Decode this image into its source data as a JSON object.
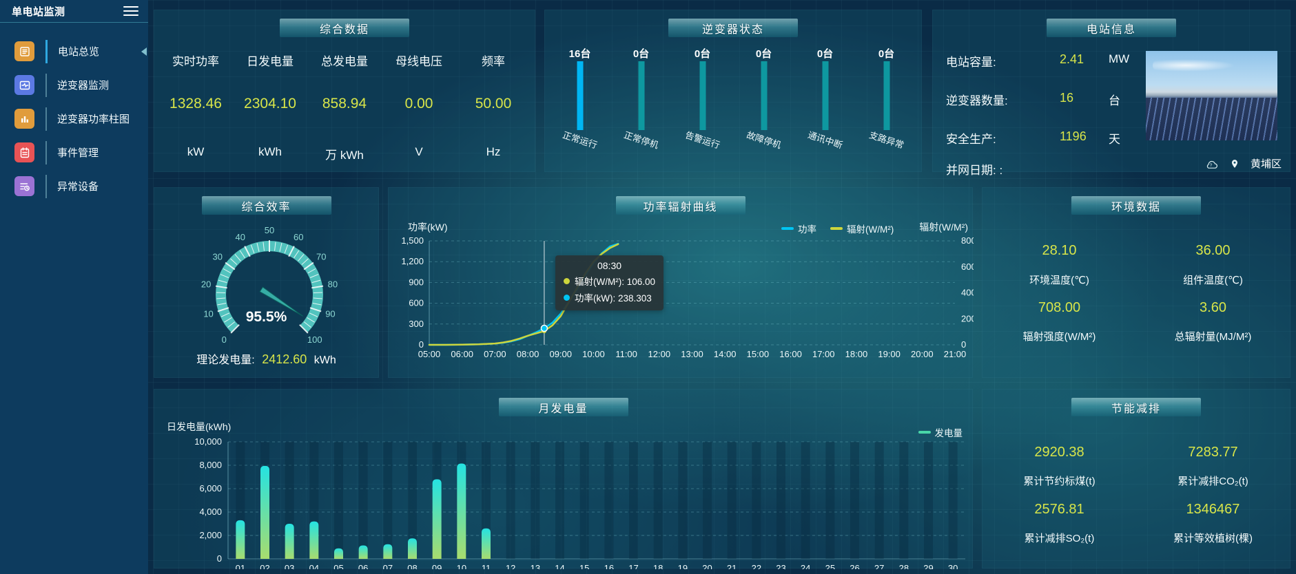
{
  "app": {
    "title": "单电站监测"
  },
  "sidebar": {
    "items": [
      {
        "label": "电站总览",
        "icon": "station-overview-icon",
        "color": "#e09c3c",
        "active": true
      },
      {
        "label": "逆变器监测",
        "icon": "inverter-monitor-icon",
        "color": "#5b79e3",
        "active": false
      },
      {
        "label": "逆变器功率柱图",
        "icon": "power-bars-icon",
        "color": "#e09c3c",
        "active": false
      },
      {
        "label": "事件管理",
        "icon": "event-management-icon",
        "color": "#e85355",
        "active": false
      },
      {
        "label": "异常设备",
        "icon": "abnormal-device-icon",
        "color": "#9b72d4",
        "active": false
      }
    ]
  },
  "panels": {
    "comprehensive": {
      "title": "综合数据",
      "metrics": [
        {
          "label": "实时功率",
          "value": "1328.46",
          "unit": "kW"
        },
        {
          "label": "日发电量",
          "value": "2304.10",
          "unit": "kWh"
        },
        {
          "label": "总发电量",
          "value": "858.94",
          "unit": "万 kWh"
        },
        {
          "label": "母线电压",
          "value": "0.00",
          "unit": "V"
        },
        {
          "label": "频率",
          "value": "50.00",
          "unit": "Hz"
        }
      ]
    },
    "inverter_status": {
      "title": "逆变器状态",
      "statuses": [
        {
          "count": "16台",
          "label": "正常运行",
          "bar_color": "#00b6f4"
        },
        {
          "count": "0台",
          "label": "正常停机",
          "bar_color": "#0e98a0"
        },
        {
          "count": "0台",
          "label": "告警运行",
          "bar_color": "#0e98a0"
        },
        {
          "count": "0台",
          "label": "故障停机",
          "bar_color": "#0e98a0"
        },
        {
          "count": "0台",
          "label": "通讯中断",
          "bar_color": "#0e98a0"
        },
        {
          "count": "0台",
          "label": "支路异常",
          "bar_color": "#0e98a0"
        }
      ]
    },
    "station_info": {
      "title": "电站信息",
      "rows": [
        {
          "label": "电站容量:",
          "value": "2.41",
          "unit": "MW"
        },
        {
          "label": "逆变器数量:",
          "value": "16",
          "unit": "台"
        },
        {
          "label": "安全生产:",
          "value": "1196",
          "unit": "天"
        }
      ],
      "grid_date_label": "并网日期: :",
      "location": "黄埔区"
    },
    "efficiency": {
      "title": "综合效率",
      "value_label": "95.5%",
      "footer_label": "理论发电量:",
      "footer_value": "2412.60",
      "footer_unit": "kWh"
    },
    "power_radiation": {
      "title": "功率辐射曲线",
      "left_axis_title": "功率(kW)",
      "right_axis_title": "辐射(W/M²)",
      "legend": [
        {
          "label": "功率",
          "color": "#00c4f2"
        },
        {
          "label": "辐射(W/M²)",
          "color": "#cdd53c"
        }
      ],
      "tooltip": {
        "title": "08:30",
        "rows": [
          {
            "color": "#cdd53c",
            "text": "辐射(W/M²): 106.00"
          },
          {
            "color": "#00c4f2",
            "text": "功率(kW): 238.303"
          }
        ]
      }
    },
    "environment": {
      "title": "环境数据",
      "cells": [
        {
          "value": "28.10",
          "label": "环境温度(℃)"
        },
        {
          "value": "36.00",
          "label": "组件温度(℃)"
        },
        {
          "value": "708.00",
          "label": "辐射强度(W/M²)"
        },
        {
          "value": "3.60",
          "label": "总辐射量(MJ/M²)"
        }
      ]
    },
    "monthly": {
      "title": "月发电量",
      "axis_title": "日发电量(kWh)",
      "legend_label": "发电量"
    },
    "energy_saving": {
      "title": "节能减排",
      "cells": [
        {
          "value": "2920.38",
          "label": "累计节约标煤(t)"
        },
        {
          "value": "7283.77",
          "label": "累计减排CO₂(t)"
        },
        {
          "value": "2576.81",
          "label": "累计减排SO₂(t)"
        },
        {
          "value": "1346467",
          "label": "累计等效植树(棵)"
        }
      ]
    }
  },
  "chart_data": [
    {
      "id": "inverter_status",
      "type": "bar",
      "title": "逆变器状态",
      "categories": [
        "正常运行",
        "正常停机",
        "告警运行",
        "故障停机",
        "通讯中断",
        "支路异常"
      ],
      "values": [
        16,
        0,
        0,
        0,
        0,
        0
      ],
      "unit": "台"
    },
    {
      "id": "efficiency_gauge",
      "type": "gauge",
      "title": "综合效率",
      "value": 95.5,
      "min": 0,
      "max": 100,
      "unit": "%",
      "ticks": [
        0,
        10,
        20,
        30,
        40,
        50,
        60,
        70,
        80,
        90,
        100
      ]
    },
    {
      "id": "power_radiation",
      "type": "line",
      "title": "功率辐射曲线",
      "xlim": [
        5,
        21
      ],
      "x_ticks": [
        "05:00",
        "06:00",
        "07:00",
        "08:00",
        "09:00",
        "10:00",
        "11:00",
        "12:00",
        "13:00",
        "14:00",
        "15:00",
        "16:00",
        "17:00",
        "18:00",
        "19:00",
        "20:00",
        "21:00"
      ],
      "x_hours": [
        5,
        5.5,
        6,
        6.5,
        7,
        7.25,
        7.5,
        7.75,
        8,
        8.25,
        8.5,
        8.75,
        9,
        9.25,
        9.5,
        9.75,
        10,
        10.25,
        10.5,
        10.75
      ],
      "series": [
        {
          "name": "功率",
          "axis": "left",
          "color": "#00c4f2",
          "values": [
            0,
            0,
            3,
            8,
            18,
            30,
            50,
            80,
            130,
            180,
            238.303,
            320,
            450,
            620,
            800,
            1000,
            1180,
            1320,
            1420,
            1460
          ]
        },
        {
          "name": "辐射(W/M²)",
          "axis": "right",
          "color": "#cdd53c",
          "values": [
            0,
            0,
            1,
            4,
            10,
            18,
            30,
            48,
            70,
            88,
            106,
            150,
            220,
            330,
            440,
            550,
            640,
            700,
            745,
            775
          ]
        }
      ],
      "left_axis": {
        "title": "功率(kW)",
        "max": 1500,
        "ticks": [
          0,
          300,
          600,
          900,
          1200,
          1500
        ]
      },
      "right_axis": {
        "title": "辐射(W/M²)",
        "max": 800,
        "ticks": [
          0,
          200,
          400,
          600,
          800
        ]
      },
      "cursor": {
        "x_hour": 8.5,
        "time": "08:30",
        "power": 238.303,
        "radiation": 106.0
      },
      "legend_position": "top-right",
      "grid": true
    },
    {
      "id": "monthly_generation",
      "type": "bar",
      "title": "月发电量",
      "ylabel": "日发电量(kWh)",
      "legend": "发电量",
      "categories": [
        "01",
        "02",
        "03",
        "04",
        "05",
        "06",
        "07",
        "08",
        "09",
        "10",
        "11",
        "12",
        "13",
        "14",
        "15",
        "16",
        "17",
        "18",
        "19",
        "20",
        "21",
        "22",
        "23",
        "24",
        "25",
        "26",
        "27",
        "28",
        "29",
        "30"
      ],
      "values": [
        3300,
        7950,
        3000,
        3200,
        900,
        1150,
        1250,
        1750,
        6800,
        8150,
        2600,
        0,
        0,
        0,
        0,
        0,
        0,
        0,
        0,
        0,
        0,
        0,
        0,
        0,
        0,
        0,
        0,
        0,
        0,
        0
      ],
      "ylim": [
        0,
        10000
      ],
      "y_ticks": [
        0,
        2000,
        4000,
        6000,
        8000,
        10000
      ]
    }
  ]
}
